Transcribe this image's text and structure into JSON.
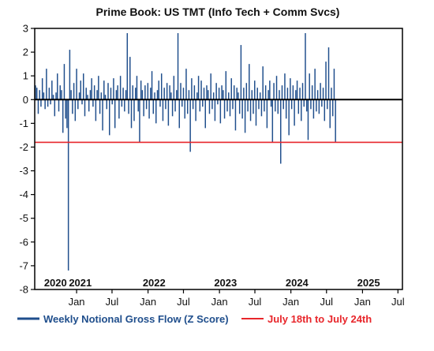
{
  "chart_data": {
    "type": "bar",
    "title": "Prime Book: US TMT (Info Tech + Comm Svcs)",
    "ylim": [
      -8,
      3
    ],
    "y_ticks": [
      "3",
      "2",
      "1",
      "0",
      "-1",
      "-2",
      "-3",
      "-4",
      "-5",
      "-6",
      "-7",
      "-8"
    ],
    "x_start": "2020-06-01",
    "x_end": "2025-07-24",
    "month_ticks": [
      {
        "label": "Jan",
        "date": "2021-01-01"
      },
      {
        "label": "Jul",
        "date": "2021-07-01"
      },
      {
        "label": "Jan",
        "date": "2022-01-01"
      },
      {
        "label": "Jul",
        "date": "2022-07-01"
      },
      {
        "label": "Jan",
        "date": "2023-01-01"
      },
      {
        "label": "Jul",
        "date": "2023-07-01"
      },
      {
        "label": "Jan",
        "date": "2024-01-01"
      },
      {
        "label": "Jul",
        "date": "2024-07-01"
      },
      {
        "label": "Jan",
        "date": "2025-01-01"
      },
      {
        "label": "Jul",
        "date": "2025-07-01"
      }
    ],
    "year_labels": [
      {
        "label": "2020",
        "date": "2020-09-15"
      },
      {
        "label": "2021",
        "date": "2021-01-20"
      },
      {
        "label": "2022",
        "date": "2022-02-01"
      },
      {
        "label": "2023",
        "date": "2023-02-01"
      },
      {
        "label": "2024",
        "date": "2024-02-01"
      },
      {
        "label": "2025",
        "date": "2025-02-01"
      }
    ],
    "series": [
      {
        "name": "Weekly Notional Gross Flow (Z Score)",
        "color": "#1f4e8c",
        "start_date": "2020-06-05",
        "interval_days": 7,
        "values": [
          0.6,
          0.5,
          -0.6,
          0.4,
          -0.3,
          0.9,
          0.3,
          -0.4,
          1.3,
          -0.3,
          0.5,
          -0.2,
          0.8,
          0.2,
          -0.7,
          0.3,
          1.1,
          -0.5,
          0.6,
          0.4,
          -1.4,
          1.5,
          -0.8,
          -1.2,
          -7.2,
          2.1,
          0.4,
          -0.6,
          0.7,
          -0.9,
          1.3,
          -0.4,
          0.3,
          0.8,
          -0.2,
          1.1,
          -0.7,
          0.5,
          0.2,
          -0.5,
          0.4,
          0.9,
          -0.3,
          0.6,
          -0.9,
          0.4,
          1.0,
          -0.6,
          0.3,
          -1.3,
          0.8,
          0.2,
          -0.4,
          0.7,
          -1.5,
          0.5,
          -0.2,
          0.9,
          -1.2,
          0.4,
          0.6,
          -0.8,
          1.0,
          -0.3,
          0.5,
          -0.5,
          0.4,
          2.8,
          -0.6,
          1.8,
          -1.2,
          0.6,
          -0.9,
          0.5,
          1.0,
          -0.5,
          -1.8,
          0.8,
          0.4,
          -0.7,
          0.6,
          -0.4,
          0.7,
          -0.8,
          0.5,
          1.2,
          -0.6,
          0.3,
          -1.0,
          0.4,
          0.8,
          -0.3,
          1.1,
          -0.9,
          0.5,
          -0.4,
          0.7,
          -1.1,
          0.6,
          0.3,
          -0.7,
          1.0,
          -0.5,
          0.4,
          2.8,
          -1.2,
          0.7,
          -0.3,
          0.5,
          -0.8,
          1.3,
          -0.6,
          0.4,
          -2.2,
          0.9,
          -0.4,
          0.6,
          -0.9,
          0.3,
          1.0,
          -0.5,
          0.8,
          -0.3,
          0.5,
          -1.2,
          0.6,
          0.4,
          -0.6,
          1.1,
          -0.4,
          0.3,
          -0.9,
          0.7,
          -0.2,
          0.5,
          -1.0,
          0.6,
          0.4,
          -0.8,
          1.2,
          -0.5,
          0.3,
          -0.7,
          0.9,
          -0.4,
          0.6,
          -1.3,
          0.5,
          0.3,
          -0.6,
          2.3,
          -0.8,
          0.5,
          -1.4,
          0.7,
          -0.5,
          1.5,
          -0.9,
          0.4,
          -0.6,
          0.8,
          -1.1,
          0.5,
          -0.4,
          0.3,
          -0.7,
          1.4,
          -0.5,
          0.6,
          -1.2,
          0.4,
          0.8,
          -0.3,
          -1.8,
          0.7,
          -0.5,
          1.0,
          -0.6,
          0.4,
          -2.7,
          0.6,
          -0.4,
          1.1,
          -0.8,
          0.5,
          -1.5,
          0.9,
          -0.4,
          0.6,
          -1.1,
          0.4,
          0.8,
          -0.6,
          0.5,
          -0.9,
          0.7,
          -0.3,
          2.8,
          -0.5,
          -1.7,
          1.1,
          -0.4,
          0.6,
          -0.8,
          1.3,
          -0.5,
          0.4,
          -0.6,
          0.7,
          -0.3,
          0.5,
          -0.9,
          1.6,
          -0.4,
          2.2,
          -1.2,
          0.5,
          -0.7,
          1.3,
          -1.8
        ]
      },
      {
        "name": "July 18th to July 24th",
        "color": "#e8262b",
        "value": -1.8
      }
    ]
  }
}
